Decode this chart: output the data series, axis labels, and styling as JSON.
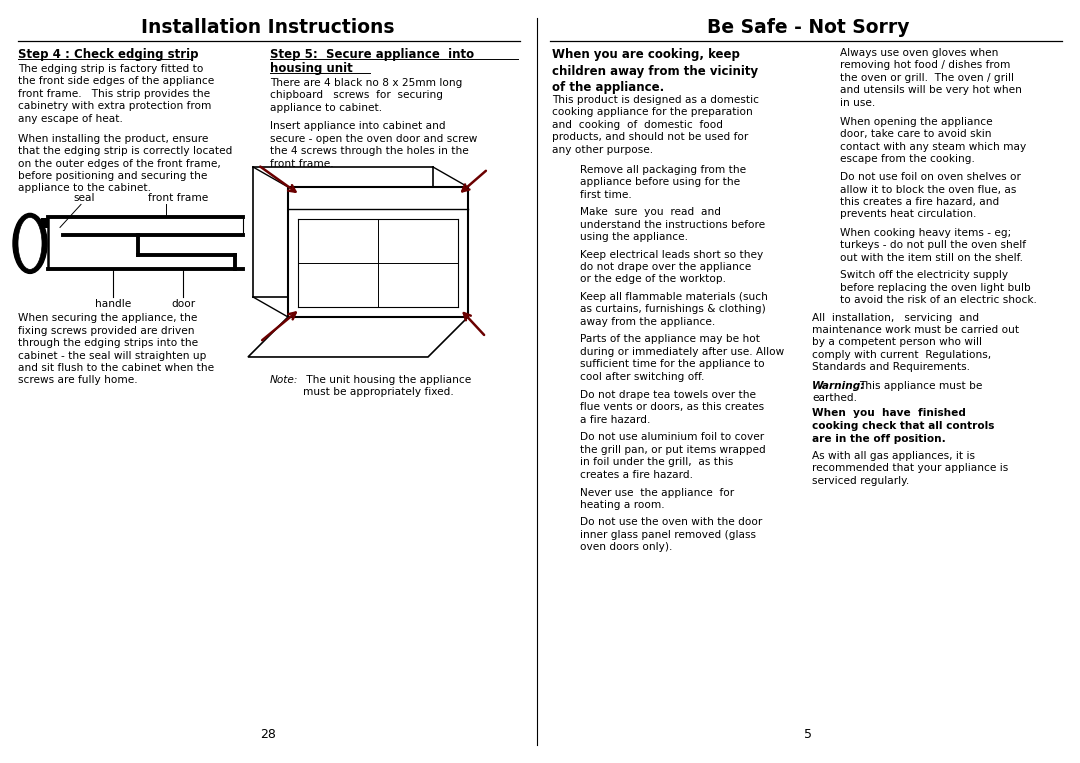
{
  "title_left": "Installation Instructions",
  "title_right": "Be Safe - Not Sorry",
  "bg_color": "#ffffff",
  "text_color": "#000000",
  "page_number_left": "28",
  "page_number_right": "5",
  "col1_heading": "Step 4 : Check edging strip",
  "col1_text1": "The edging strip is factory fitted to\nthe front side edges of the appliance\nfront frame.   This strip provides the\ncabinetry with extra protection from\nany escape of heat.",
  "col1_text2": "When installing the product, ensure\nthat the edging strip is correctly located\non the outer edges of the front frame,\nbefore positioning and securing the\nappliance to the cabinet.",
  "col1_label_seal": "seal",
  "col1_label_frame": "front frame",
  "col1_label_handle": "handle",
  "col1_label_door": "door",
  "col1_text3": "When securing the appliance, the\nfixing screws provided are driven\nthrough the edging strips into the\ncabinet - the seal will straighten up\nand sit flush to the cabinet when the\nscrews are fully home.",
  "col2_heading_line1": "Step 5:  Secure appliance  into",
  "col2_heading_line2": "housing unit",
  "col2_text1": "There are 4 black no 8 x 25mm long\nchipboard   screws  for  securing\nappliance to cabinet.",
  "col2_text2": "Insert appliance into cabinet and\nsecure - open the oven door and screw\nthe 4 screws through the holes in the\nfront frame.",
  "col2_note_italic": "Note:",
  "col2_note_rest": " The unit housing the appliance\nmust be appropriately fixed.",
  "col3_heading": "When you are cooking, keep\nchildren away from the vicinity\nof the appliance.",
  "col3_para1": "This product is designed as a domestic\ncooking appliance for the preparation\nand  cooking  of  domestic  food\nproducts, and should not be used for\nany other purpose.",
  "col3_indented": [
    "Remove all packaging from the\nappliance before using for the\nfirst time.",
    "Make  sure  you  read  and\nunderstand the instructions before\nusing the appliance.",
    "Keep electrical leads short so they\ndo not drape over the appliance\nor the edge of the worktop.",
    "Keep all flammable materials (such\nas curtains, furnishings & clothing)\naway from the appliance.",
    "Parts of the appliance may be hot\nduring or immediately after use. Allow\nsufficient time for the appliance to\ncool after switching off.",
    "Do not drape tea towels over the\nflue vents or doors, as this creates\na fire hazard.",
    "Do not use aluminium foil to cover\nthe grill pan, or put items wrapped\nin foil under the grill,  as this\ncreates a fire hazard.",
    "Never use  the appliance  for\nheating a room.",
    "Do not use the oven with the door\ninner glass panel removed (glass\noven doors only)."
  ],
  "col4_indented": [
    "Always use oven gloves when\nremoving hot food / dishes from\nthe oven or grill.  The oven / grill\nand utensils will be very hot when\nin use.",
    "When opening the appliance\ndoor, take care to avoid skin\ncontact with any steam which may\nescape from the cooking.",
    "Do not use foil on oven shelves or\nallow it to block the oven flue, as\nthis creates a fire hazard, and\nprevents heat circulation.",
    "When cooking heavy items - eg;\nturkeys - do not pull the oven shelf\nout with the item still on the shelf.",
    "Switch off the electricity supply\nbefore replacing the oven light bulb\nto avoid the risk of an electric shock."
  ],
  "col4_para_full": "All  installation,   servicing  and\nmaintenance work must be carried out\nby a competent person who will\ncomply with current  Regulations,\nStandards and Requirements.",
  "col4_warning_bold": "Warning:",
  "col4_warning_rest": " This appliance must be\nearthed.",
  "col4_bold_para": "When  you  have  finished\ncooking check that all controls\nare in the off position.",
  "col4_last": "As with all gas appliances, it is\nrecommended that your appliance is\nserviced regularly."
}
